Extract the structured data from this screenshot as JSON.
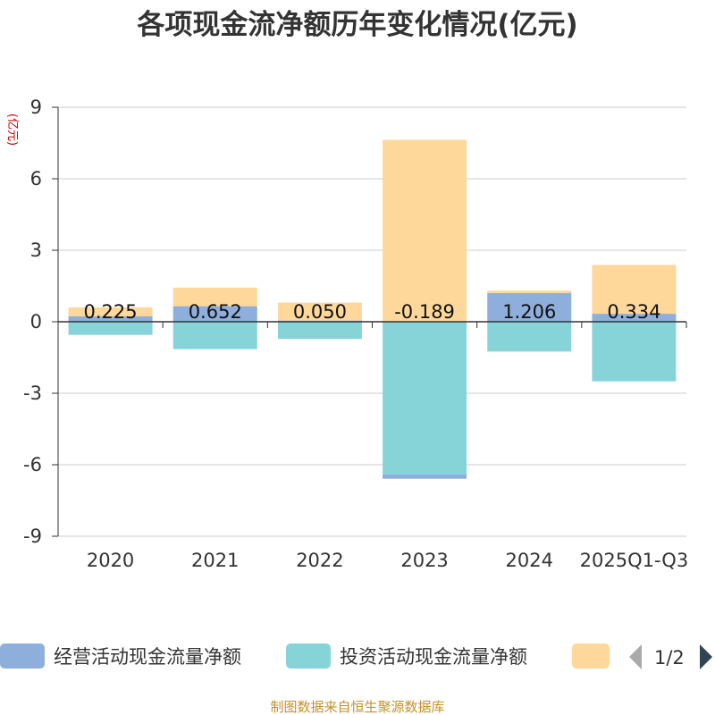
{
  "chart_data": {
    "type": "bar",
    "stacked": true,
    "title": "各项现金流净额历年变化情况(亿元)",
    "ylabel": "(亿元)",
    "xlabel": "",
    "ylim": [
      -9,
      9
    ],
    "yticks": [
      9,
      6,
      3,
      0,
      -3,
      -6,
      -9
    ],
    "categories": [
      "2020",
      "2021",
      "2022",
      "2023",
      "2024",
      "2025Q1-Q3"
    ],
    "series": [
      {
        "name": "经营活动现金流量净额",
        "color": "#8eaedb",
        "values": [
          0.225,
          0.652,
          0.05,
          -0.189,
          1.206,
          0.334
        ],
        "labels": [
          "0.225",
          "0.652",
          "0.050",
          "-0.189",
          "1.206",
          "0.334"
        ]
      },
      {
        "name": "投资活动现金流量净额",
        "color": "#86d4d8",
        "values": [
          -0.55,
          -1.15,
          -0.72,
          -6.4,
          -1.25,
          -2.5
        ]
      },
      {
        "name": "",
        "color": "#fdd89a",
        "values": [
          0.38,
          0.78,
          0.75,
          7.63,
          0.1,
          2.05
        ]
      }
    ],
    "legend_position": "bottom",
    "legend_page": "1/2"
  },
  "source": "制图数据来自恒生聚源数据库"
}
